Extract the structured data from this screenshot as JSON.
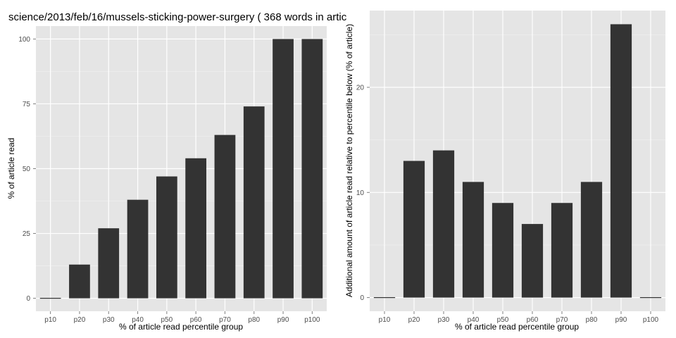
{
  "chart_data": [
    {
      "type": "bar",
      "title": "science/2013/feb/16/mussels-sticking-power-surgery ( 368 words in artic",
      "xlabel": "% of article read percentile group",
      "ylabel": "% of article read",
      "categories": [
        "p10",
        "p20",
        "p30",
        "p40",
        "p50",
        "p60",
        "p70",
        "p80",
        "p90",
        "p100"
      ],
      "values": [
        0,
        13,
        27,
        38,
        47,
        54,
        63,
        74,
        100,
        100
      ],
      "ylim": [
        -5,
        105
      ],
      "yticks": [
        0,
        25,
        50,
        75,
        100
      ],
      "ytick_labels": [
        "0",
        "25",
        "50",
        "75",
        "100"
      ],
      "grid": true,
      "colors": {
        "panel": "#e5e5e5",
        "grid": "#ffffff",
        "bar": "#333333"
      }
    },
    {
      "type": "bar",
      "title": "",
      "xlabel": "% of article read percentile group",
      "ylabel": "Additional amount of article read relative to percentile below (% of article)",
      "categories": [
        "p10",
        "p20",
        "p30",
        "p40",
        "p50",
        "p60",
        "p70",
        "p80",
        "p90",
        "p100"
      ],
      "values": [
        0,
        13,
        14,
        11,
        9,
        7,
        9,
        11,
        26,
        0
      ],
      "ylim": [
        -1.3,
        27.3
      ],
      "yticks": [
        0,
        10,
        20
      ],
      "ytick_labels": [
        "0",
        "10",
        "20"
      ],
      "grid": true,
      "colors": {
        "panel": "#e5e5e5",
        "grid": "#ffffff",
        "bar": "#333333"
      }
    }
  ]
}
